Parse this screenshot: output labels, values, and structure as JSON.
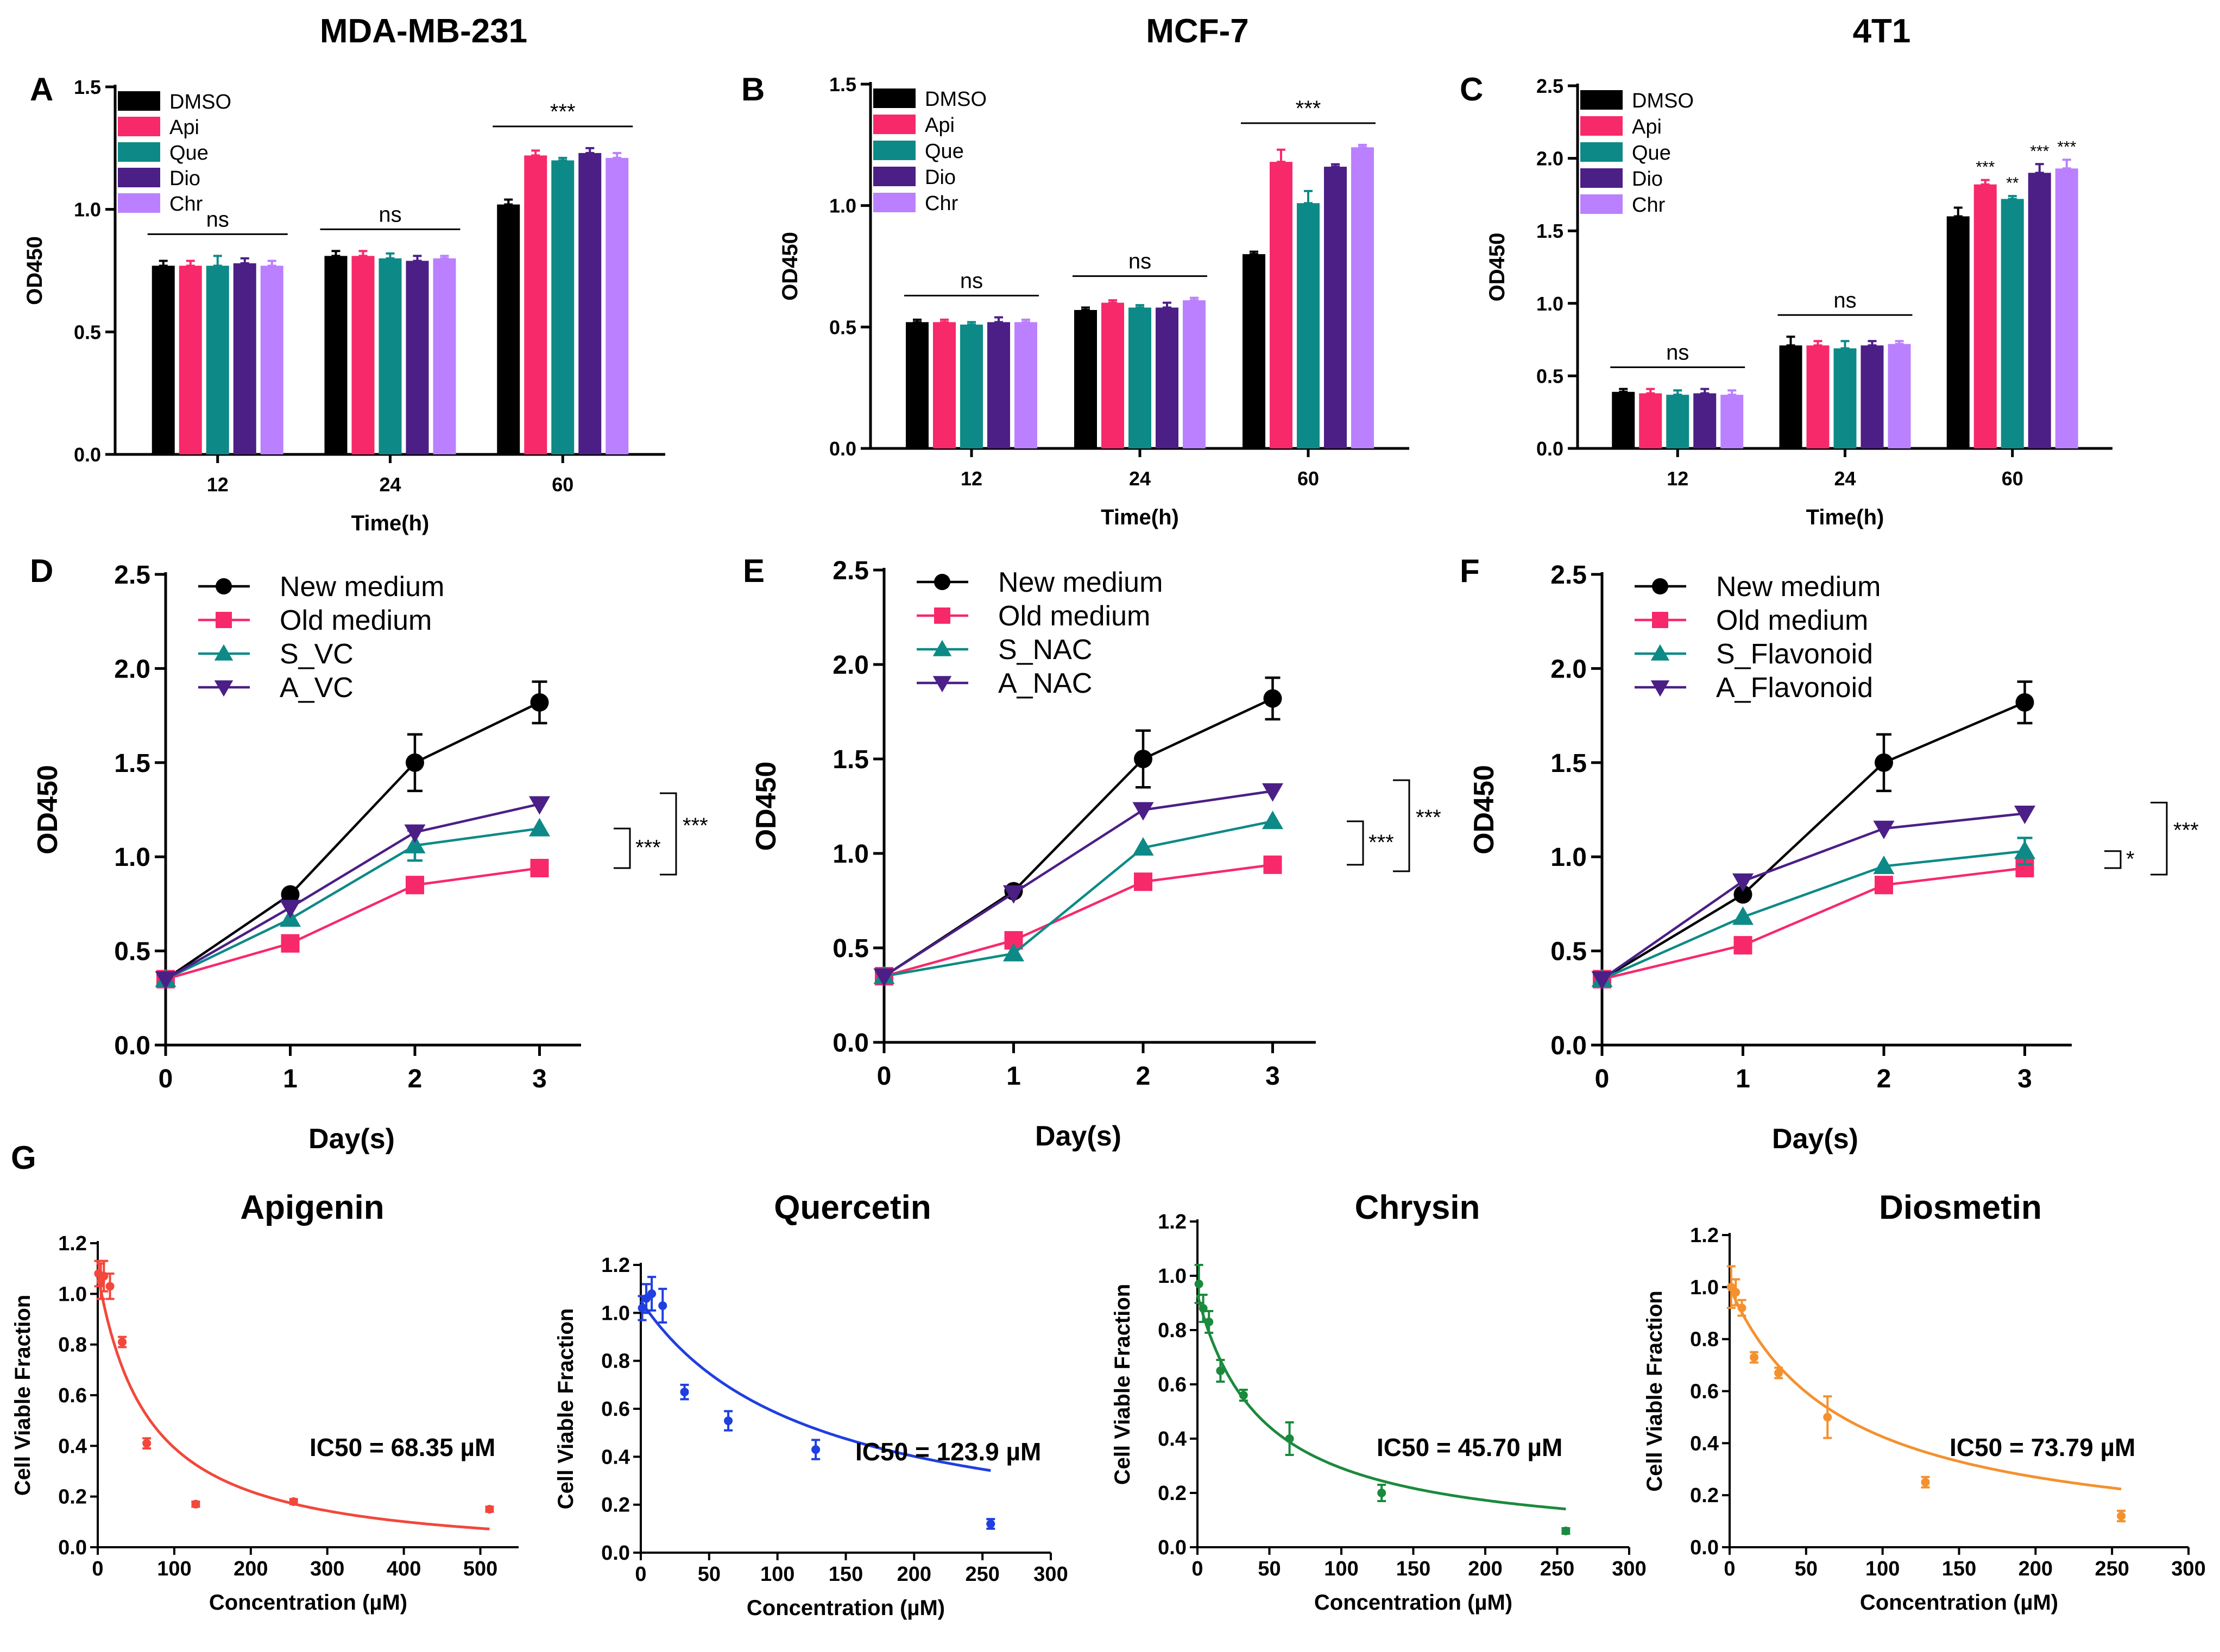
{
  "chart_data": [
    {
      "id": "A",
      "type": "bar",
      "title": "MDA-MB-231",
      "xlabel": "Time(h)",
      "ylabel": "OD450",
      "ylim": [
        0,
        1.5
      ],
      "yticks": [
        "0.0",
        "0.5",
        "1.0",
        "1.5"
      ],
      "categories": [
        "12",
        "24",
        "60"
      ],
      "series": [
        {
          "name": "DMSO",
          "color": "#000000",
          "values": [
            0.77,
            0.81,
            1.02
          ],
          "errors": [
            0.02,
            0.02,
            0.02
          ]
        },
        {
          "name": "Api",
          "color": "#f7296a",
          "values": [
            0.77,
            0.81,
            1.22
          ],
          "errors": [
            0.02,
            0.02,
            0.02
          ]
        },
        {
          "name": "Que",
          "color": "#0d8a87",
          "values": [
            0.77,
            0.8,
            1.2
          ],
          "errors": [
            0.04,
            0.02,
            0.01
          ]
        },
        {
          "name": "Dio",
          "color": "#4b1f86",
          "values": [
            0.78,
            0.79,
            1.23
          ],
          "errors": [
            0.02,
            0.02,
            0.02
          ]
        },
        {
          "name": "Chr",
          "color": "#bb80ff",
          "values": [
            0.77,
            0.8,
            1.21
          ],
          "errors": [
            0.02,
            0.01,
            0.02
          ]
        }
      ],
      "sig": [
        "ns",
        "ns",
        "***"
      ]
    },
    {
      "id": "B",
      "type": "bar",
      "title": "MCF-7",
      "xlabel": "Time(h)",
      "ylabel": "OD450",
      "ylim": [
        0,
        1.5
      ],
      "yticks": [
        "0.0",
        "0.5",
        "1.0",
        "1.5"
      ],
      "categories": [
        "12",
        "24",
        "60"
      ],
      "series": [
        {
          "name": "DMSO",
          "color": "#000000",
          "values": [
            0.52,
            0.57,
            0.8
          ],
          "errors": [
            0.01,
            0.01,
            0.01
          ]
        },
        {
          "name": "Api",
          "color": "#f7296a",
          "values": [
            0.52,
            0.6,
            1.18
          ],
          "errors": [
            0.01,
            0.01,
            0.05
          ]
        },
        {
          "name": "Que",
          "color": "#0d8a87",
          "values": [
            0.51,
            0.58,
            1.01
          ],
          "errors": [
            0.01,
            0.01,
            0.05
          ]
        },
        {
          "name": "Dio",
          "color": "#4b1f86",
          "values": [
            0.52,
            0.58,
            1.16
          ],
          "errors": [
            0.02,
            0.02,
            0.01
          ]
        },
        {
          "name": "Chr",
          "color": "#bb80ff",
          "values": [
            0.52,
            0.61,
            1.24
          ],
          "errors": [
            0.01,
            0.01,
            0.01
          ]
        }
      ],
      "sig": [
        "ns",
        "ns",
        "***"
      ]
    },
    {
      "id": "C",
      "type": "bar",
      "title": "4T1",
      "xlabel": "Time(h)",
      "ylabel": "OD450",
      "ylim": [
        0,
        2.5
      ],
      "yticks": [
        "0.0",
        "0.5",
        "1.0",
        "1.5",
        "2.0",
        "2.5"
      ],
      "categories": [
        "12",
        "24",
        "60"
      ],
      "series": [
        {
          "name": "DMSO",
          "color": "#000000",
          "values": [
            0.39,
            0.71,
            1.6
          ],
          "errors": [
            0.02,
            0.06,
            0.06
          ]
        },
        {
          "name": "Api",
          "color": "#f7296a",
          "values": [
            0.38,
            0.71,
            1.82
          ],
          "errors": [
            0.03,
            0.03,
            0.03
          ]
        },
        {
          "name": "Que",
          "color": "#0d8a87",
          "values": [
            0.37,
            0.69,
            1.72
          ],
          "errors": [
            0.03,
            0.05,
            0.02
          ]
        },
        {
          "name": "Dio",
          "color": "#4b1f86",
          "values": [
            0.38,
            0.71,
            1.9
          ],
          "errors": [
            0.03,
            0.03,
            0.06
          ]
        },
        {
          "name": "Chr",
          "color": "#bb80ff",
          "values": [
            0.37,
            0.72,
            1.93
          ],
          "errors": [
            0.03,
            0.02,
            0.06
          ]
        }
      ],
      "sig": [
        "ns",
        "ns",
        ""
      ],
      "barSig": [
        [
          "",
          "***",
          "**",
          "***",
          "***"
        ]
      ]
    },
    {
      "id": "D",
      "type": "line",
      "xlabel": "Day(s)",
      "ylabel": "OD450",
      "ylim": [
        0,
        2.5
      ],
      "xlim": [
        0,
        3
      ],
      "xticks": [
        "0",
        "1",
        "2",
        "3"
      ],
      "yticks": [
        "0.0",
        "0.5",
        "1.0",
        "1.5",
        "2.0",
        "2.5"
      ],
      "x": [
        0,
        1,
        2,
        3
      ],
      "series": [
        {
          "name": "New medium",
          "color": "#000000",
          "marker": "circle",
          "values": [
            0.35,
            0.8,
            1.5,
            1.82
          ],
          "errors": [
            0,
            0.02,
            0.15,
            0.11
          ]
        },
        {
          "name": "Old medium",
          "color": "#f7296a",
          "marker": "square",
          "values": [
            0.35,
            0.54,
            0.85,
            0.94
          ],
          "errors": [
            0,
            0.02,
            0.03,
            0.02
          ]
        },
        {
          "name": "S_VC",
          "color": "#0d8a87",
          "marker": "triangle",
          "values": [
            0.35,
            0.67,
            1.06,
            1.15
          ],
          "errors": [
            0,
            0.02,
            0.08,
            0.02
          ]
        },
        {
          "name": "A_VC",
          "color": "#4b1f86",
          "marker": "triangle-down",
          "values": [
            0.35,
            0.73,
            1.13,
            1.28
          ],
          "errors": [
            0,
            0.02,
            0.03,
            0.02
          ]
        }
      ],
      "brackets": [
        "***",
        "***"
      ]
    },
    {
      "id": "E",
      "type": "line",
      "xlabel": "Day(s)",
      "ylabel": "OD450",
      "ylim": [
        0,
        2.5
      ],
      "xlim": [
        0,
        3
      ],
      "xticks": [
        "0",
        "1",
        "2",
        "3"
      ],
      "yticks": [
        "0.0",
        "0.5",
        "1.0",
        "1.5",
        "2.0",
        "2.5"
      ],
      "x": [
        0,
        1,
        2,
        3
      ],
      "series": [
        {
          "name": "New medium",
          "color": "#000000",
          "marker": "circle",
          "values": [
            0.35,
            0.8,
            1.5,
            1.82
          ],
          "errors": [
            0,
            0.02,
            0.15,
            0.11
          ]
        },
        {
          "name": "Old medium",
          "color": "#f7296a",
          "marker": "square",
          "values": [
            0.35,
            0.54,
            0.85,
            0.94
          ],
          "errors": [
            0,
            0.02,
            0.03,
            0.02
          ]
        },
        {
          "name": "S_NAC",
          "color": "#0d8a87",
          "marker": "triangle",
          "values": [
            0.35,
            0.47,
            1.03,
            1.17
          ],
          "errors": [
            0,
            0.02,
            0.02,
            0.02
          ]
        },
        {
          "name": "A_NAC",
          "color": "#4b1f86",
          "marker": "triangle-down",
          "values": [
            0.35,
            0.79,
            1.23,
            1.33
          ],
          "errors": [
            0,
            0.02,
            0.02,
            0.02
          ]
        }
      ],
      "brackets": [
        "***",
        "***"
      ]
    },
    {
      "id": "F",
      "type": "line",
      "xlabel": "Day(s)",
      "ylabel": "OD450",
      "ylim": [
        0,
        2.5
      ],
      "xlim": [
        0,
        3
      ],
      "xticks": [
        "0",
        "1",
        "2",
        "3"
      ],
      "yticks": [
        "0.0",
        "0.5",
        "1.0",
        "1.5",
        "2.0",
        "2.5"
      ],
      "x": [
        0,
        1,
        2,
        3
      ],
      "series": [
        {
          "name": "New medium",
          "color": "#000000",
          "marker": "circle",
          "values": [
            0.35,
            0.8,
            1.5,
            1.82
          ],
          "errors": [
            0,
            0.02,
            0.15,
            0.11
          ]
        },
        {
          "name": "Old medium",
          "color": "#f7296a",
          "marker": "square",
          "values": [
            0.35,
            0.53,
            0.85,
            0.94
          ],
          "errors": [
            0,
            0.02,
            0.03,
            0.02
          ]
        },
        {
          "name": "S_Flavonoid",
          "color": "#0d8a87",
          "marker": "triangle",
          "values": [
            0.35,
            0.68,
            0.95,
            1.03
          ],
          "errors": [
            0,
            0.02,
            0.02,
            0.07
          ]
        },
        {
          "name": "A_Flavonoid",
          "color": "#4b1f86",
          "marker": "triangle-down",
          "values": [
            0.35,
            0.87,
            1.15,
            1.23
          ],
          "errors": [
            0,
            0.02,
            0.02,
            0.02
          ]
        }
      ],
      "brackets": [
        "*",
        "***"
      ]
    },
    {
      "id": "G1",
      "type": "scatter",
      "title": "Apigenin",
      "color": "#f2473b",
      "xlabel": "Concentration (µM)",
      "ylabel": "Cell Viable Fraction",
      "xlim": [
        0,
        550
      ],
      "ylim": [
        0,
        1.2
      ],
      "xticks": [
        "0",
        "100",
        "200",
        "300",
        "400",
        "500"
      ],
      "xtickvals": [
        0,
        100,
        200,
        300,
        400,
        500
      ],
      "yticks": [
        "0.0",
        "0.2",
        "0.4",
        "0.6",
        "0.8",
        "1.0",
        "1.2"
      ],
      "ic50_label": "IC50 = 68.35 µM",
      "ic50": 68.35,
      "fit_top": 1.08,
      "points": [
        [
          1,
          1.08,
          0.05
        ],
        [
          4,
          1.05,
          0.07
        ],
        [
          8,
          1.07,
          0.06
        ],
        [
          16,
          1.03,
          0.05
        ],
        [
          32,
          0.81,
          0.02
        ],
        [
          64,
          0.41,
          0.02
        ],
        [
          128,
          0.17,
          0.01
        ],
        [
          256,
          0.18,
          0.01
        ],
        [
          512,
          0.15,
          0.01
        ]
      ]
    },
    {
      "id": "G2",
      "type": "scatter",
      "title": "Quercetin",
      "color": "#1f3fe0",
      "xlabel": "Concentration (µM)",
      "ylabel": "Cell Viable Fraction",
      "xlim": [
        0,
        300
      ],
      "ylim": [
        0,
        1.2
      ],
      "xticks": [
        "0",
        "50",
        "100",
        "150",
        "200",
        "250",
        "300"
      ],
      "xtickvals": [
        0,
        50,
        100,
        150,
        200,
        250,
        300
      ],
      "yticks": [
        "0.0",
        "0.2",
        "0.4",
        "0.6",
        "0.8",
        "1.0",
        "1.2"
      ],
      "ic50_label": "IC50 = 123.9 µM",
      "ic50": 123.9,
      "fit_top": 1.05,
      "points": [
        [
          1,
          1.02,
          0.05
        ],
        [
          4,
          1.06,
          0.06
        ],
        [
          8,
          1.08,
          0.07
        ],
        [
          16,
          1.03,
          0.07
        ],
        [
          32,
          0.67,
          0.03
        ],
        [
          64,
          0.55,
          0.04
        ],
        [
          128,
          0.43,
          0.04
        ],
        [
          256,
          0.12,
          0.02
        ]
      ]
    },
    {
      "id": "G3",
      "type": "scatter",
      "title": "Chrysin",
      "color": "#1a8a3c",
      "xlabel": "Concentration (µM)",
      "ylabel": "Cell Viable Fraction",
      "xlim": [
        0,
        300
      ],
      "ylim": [
        0,
        1.2
      ],
      "xticks": [
        "0",
        "50",
        "100",
        "150",
        "200",
        "250",
        "300"
      ],
      "xtickvals": [
        0,
        50,
        100,
        150,
        200,
        250,
        300
      ],
      "yticks": [
        "0.0",
        "0.2",
        "0.4",
        "0.6",
        "0.8",
        "1.0",
        "1.2"
      ],
      "ic50_label": "IC50 = 45.70 µM",
      "ic50": 45.7,
      "fit_top": 0.93,
      "points": [
        [
          1,
          0.97,
          0.07
        ],
        [
          4,
          0.88,
          0.05
        ],
        [
          8,
          0.83,
          0.04
        ],
        [
          16,
          0.65,
          0.04
        ],
        [
          32,
          0.56,
          0.02
        ],
        [
          64,
          0.4,
          0.06
        ],
        [
          128,
          0.2,
          0.03
        ],
        [
          256,
          0.06,
          0.01
        ]
      ]
    },
    {
      "id": "G4",
      "type": "scatter",
      "title": "Diosmetin",
      "color": "#f4912f",
      "xlabel": "Concentration (µM)",
      "ylabel": "Cell Viable Fraction",
      "xlim": [
        0,
        300
      ],
      "ylim": [
        0,
        1.2
      ],
      "xticks": [
        "0",
        "50",
        "100",
        "150",
        "200",
        "250",
        "300"
      ],
      "xtickvals": [
        0,
        50,
        100,
        150,
        200,
        250,
        300
      ],
      "yticks": [
        "0.0",
        "0.2",
        "0.4",
        "0.6",
        "0.8",
        "1.0",
        "1.2"
      ],
      "ic50_label": "IC50 = 73.79 µM",
      "ic50": 73.79,
      "fit_top": 1.0,
      "points": [
        [
          1,
          1.0,
          0.08
        ],
        [
          4,
          0.98,
          0.05
        ],
        [
          8,
          0.92,
          0.03
        ],
        [
          16,
          0.73,
          0.02
        ],
        [
          32,
          0.67,
          0.02
        ],
        [
          64,
          0.5,
          0.08
        ],
        [
          128,
          0.25,
          0.02
        ],
        [
          256,
          0.12,
          0.02
        ]
      ]
    }
  ],
  "panel_labels": [
    "A",
    "B",
    "C",
    "D",
    "E",
    "F",
    "G"
  ]
}
